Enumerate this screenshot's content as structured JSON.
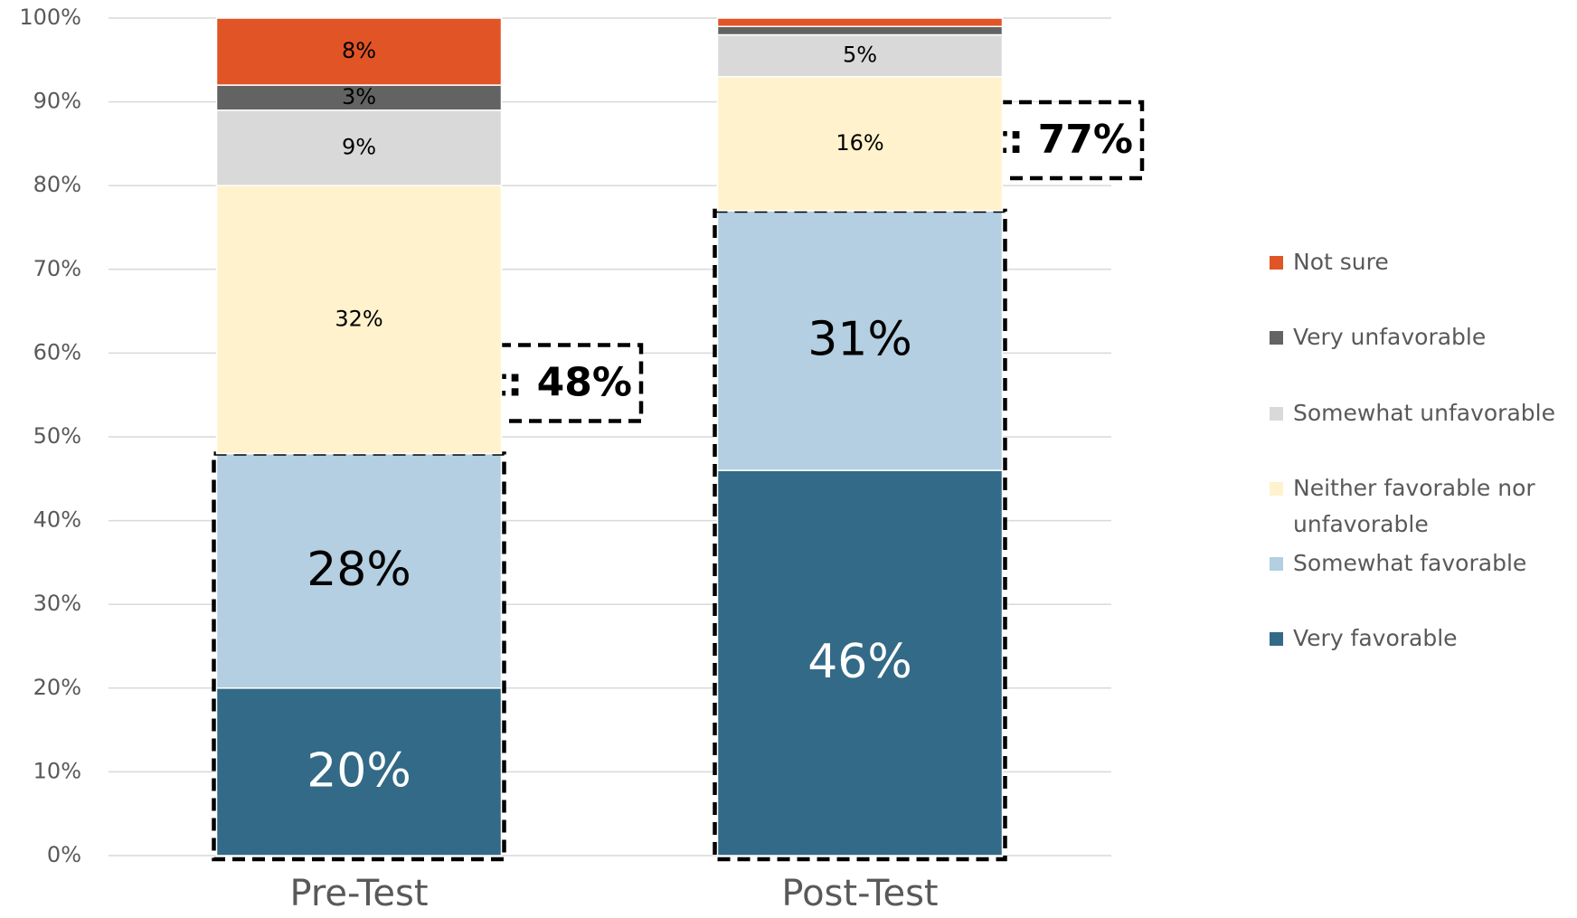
{
  "chart_data": {
    "type": "stacked_bar",
    "categories": [
      "Pre-Test",
      "Post-Test"
    ],
    "series": [
      {
        "name": "Very favorable",
        "color": "#336a87",
        "values": [
          20,
          46
        ],
        "value_labels": [
          "20%",
          "46%"
        ]
      },
      {
        "name": "Somewhat favorable",
        "color": "#b3cfe1",
        "values": [
          28,
          31
        ],
        "value_labels": [
          "28%",
          "31%"
        ]
      },
      {
        "name": "Neither favorable nor unfavorable",
        "color": "#fff2cc",
        "values": [
          32,
          16
        ],
        "value_labels": [
          "32%",
          "16%"
        ]
      },
      {
        "name": "Somewhat unfavorable",
        "color": "#d9d9d9",
        "values": [
          9,
          5
        ],
        "value_labels": [
          "9%",
          "5%"
        ]
      },
      {
        "name": "Very unfavorable",
        "color": "#636363",
        "values": [
          3,
          1
        ],
        "value_labels": [
          "3%",
          null
        ]
      },
      {
        "name": "Not sure",
        "color": "#e05426",
        "values": [
          8,
          1
        ],
        "value_labels": [
          "8%",
          null
        ]
      }
    ],
    "annotations": [
      "Net: 48%",
      "Net: 77%"
    ],
    "ylim": [
      0,
      100
    ],
    "yticks": [
      {
        "value": 0,
        "label": "0%"
      },
      {
        "value": 10,
        "label": "10%"
      },
      {
        "value": 20,
        "label": "20%"
      },
      {
        "value": 30,
        "label": "30%"
      },
      {
        "value": 40,
        "label": "40%"
      },
      {
        "value": 50,
        "label": "50%"
      },
      {
        "value": 60,
        "label": "60%"
      },
      {
        "value": 70,
        "label": "70%"
      },
      {
        "value": 80,
        "label": "80%"
      },
      {
        "value": 90,
        "label": "90%"
      },
      {
        "value": 100,
        "label": "100%"
      }
    ],
    "grid": true,
    "legend": "right"
  }
}
